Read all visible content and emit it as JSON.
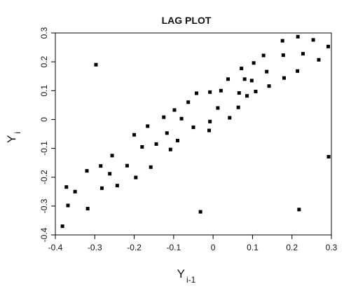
{
  "chart_data": {
    "type": "scatter",
    "title": "LAG PLOT",
    "xlabel": {
      "main": "Y",
      "sub": "i-1"
    },
    "ylabel": {
      "main": "Y",
      "sub": "i"
    },
    "xlim": [
      -0.4,
      0.3
    ],
    "ylim": [
      -0.4,
      0.3
    ],
    "xticks": [
      {
        "value": -0.4,
        "label": "-0.4"
      },
      {
        "value": -0.3,
        "label": "-0.3"
      },
      {
        "value": -0.2,
        "label": "-0.2"
      },
      {
        "value": -0.1,
        "label": "-0.1"
      },
      {
        "value": 0,
        "label": "0"
      },
      {
        "value": 0.1,
        "label": "0.1"
      },
      {
        "value": 0.2,
        "label": "0.2"
      },
      {
        "value": 0.3,
        "label": "0.3"
      }
    ],
    "yticks": [
      {
        "value": -0.4,
        "label": "-0.4"
      },
      {
        "value": -0.3,
        "label": "-0.3"
      },
      {
        "value": -0.2,
        "label": "-0.2"
      },
      {
        "value": -0.1,
        "label": "-0.1"
      },
      {
        "value": 0,
        "label": "0"
      },
      {
        "value": 0.1,
        "label": "0.1"
      },
      {
        "value": 0.2,
        "label": "0.2"
      },
      {
        "value": 0.3,
        "label": "0.3"
      }
    ],
    "grid": false,
    "legend": false,
    "marker_color": "#000000",
    "points": [
      {
        "x": -0.382,
        "y": -0.37
      },
      {
        "x": -0.372,
        "y": -0.234
      },
      {
        "x": -0.368,
        "y": -0.298
      },
      {
        "x": -0.35,
        "y": -0.25
      },
      {
        "x": -0.32,
        "y": -0.178
      },
      {
        "x": -0.318,
        "y": -0.309
      },
      {
        "x": -0.297,
        "y": 0.19
      },
      {
        "x": -0.285,
        "y": -0.161
      },
      {
        "x": -0.282,
        "y": -0.238
      },
      {
        "x": -0.262,
        "y": -0.188
      },
      {
        "x": -0.256,
        "y": -0.125
      },
      {
        "x": -0.243,
        "y": -0.229
      },
      {
        "x": -0.218,
        "y": -0.16
      },
      {
        "x": -0.2,
        "y": -0.053
      },
      {
        "x": -0.196,
        "y": -0.201
      },
      {
        "x": -0.18,
        "y": -0.095
      },
      {
        "x": -0.166,
        "y": -0.023
      },
      {
        "x": -0.158,
        "y": -0.165
      },
      {
        "x": -0.144,
        "y": -0.085
      },
      {
        "x": -0.125,
        "y": 0.008
      },
      {
        "x": -0.117,
        "y": -0.047
      },
      {
        "x": -0.108,
        "y": -0.104
      },
      {
        "x": -0.098,
        "y": 0.033
      },
      {
        "x": -0.09,
        "y": -0.073
      },
      {
        "x": -0.08,
        "y": 0.003
      },
      {
        "x": -0.063,
        "y": 0.06
      },
      {
        "x": -0.05,
        "y": -0.027
      },
      {
        "x": -0.042,
        "y": 0.091
      },
      {
        "x": -0.032,
        "y": -0.32
      },
      {
        "x": -0.01,
        "y": -0.038
      },
      {
        "x": -0.008,
        "y": -0.007
      },
      {
        "x": -0.008,
        "y": 0.095
      },
      {
        "x": 0.012,
        "y": 0.04
      },
      {
        "x": 0.02,
        "y": 0.1
      },
      {
        "x": 0.038,
        "y": 0.14
      },
      {
        "x": 0.042,
        "y": 0.006
      },
      {
        "x": 0.064,
        "y": 0.042
      },
      {
        "x": 0.066,
        "y": 0.092
      },
      {
        "x": 0.072,
        "y": 0.177
      },
      {
        "x": 0.08,
        "y": 0.14
      },
      {
        "x": 0.086,
        "y": 0.082
      },
      {
        "x": 0.098,
        "y": 0.135
      },
      {
        "x": 0.103,
        "y": 0.196
      },
      {
        "x": 0.108,
        "y": 0.097
      },
      {
        "x": 0.128,
        "y": 0.222
      },
      {
        "x": 0.136,
        "y": 0.166
      },
      {
        "x": 0.142,
        "y": 0.116
      },
      {
        "x": 0.176,
        "y": 0.273
      },
      {
        "x": 0.178,
        "y": 0.223
      },
      {
        "x": 0.18,
        "y": 0.144
      },
      {
        "x": 0.214,
        "y": 0.168
      },
      {
        "x": 0.215,
        "y": 0.287
      },
      {
        "x": 0.218,
        "y": -0.312
      },
      {
        "x": 0.228,
        "y": 0.228
      },
      {
        "x": 0.254,
        "y": 0.276
      },
      {
        "x": 0.268,
        "y": 0.207
      },
      {
        "x": 0.292,
        "y": 0.253
      },
      {
        "x": 0.293,
        "y": -0.129
      }
    ]
  }
}
